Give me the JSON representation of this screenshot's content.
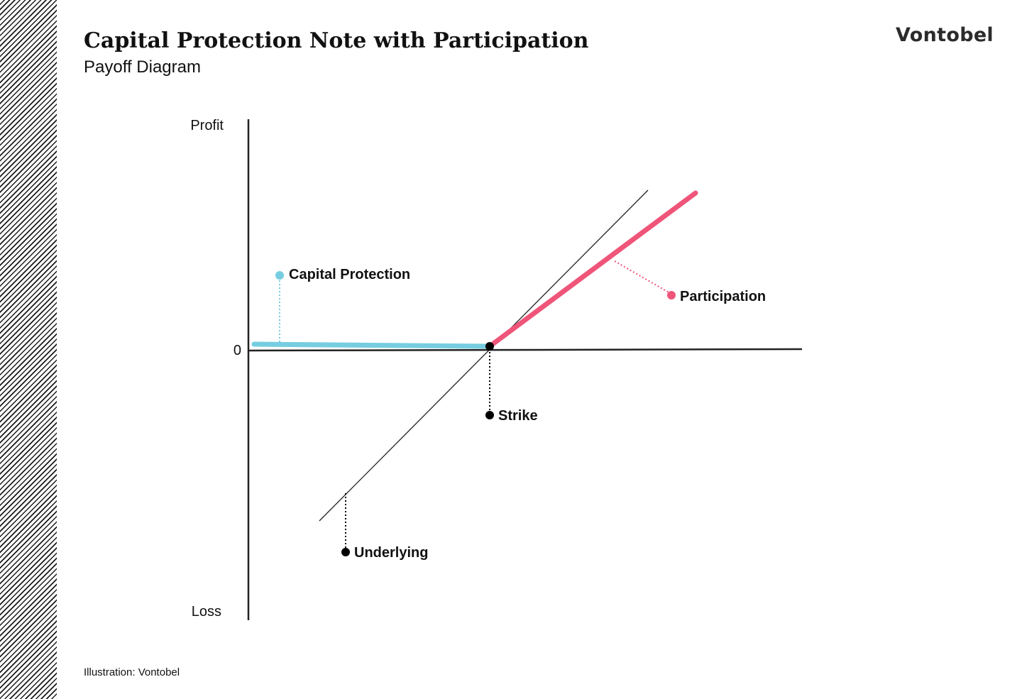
{
  "header": {
    "title": "Capital Protection Note with Participation",
    "subtitle": "Payoff Diagram",
    "brand": "Vontobel"
  },
  "footer": {
    "credit": "Illustration: Vontobel"
  },
  "diagram": {
    "axis_labels": {
      "top": "Profit",
      "bottom": "Loss",
      "zero": "0"
    },
    "callouts": {
      "capital_protection": "Capital Protection",
      "participation": "Participation",
      "strike": "Strike",
      "underlying": "Underlying"
    },
    "colors": {
      "capital_protection": "#76cde0",
      "participation": "#ef5479",
      "underlying": "#222222",
      "axes": "#222222"
    }
  }
}
